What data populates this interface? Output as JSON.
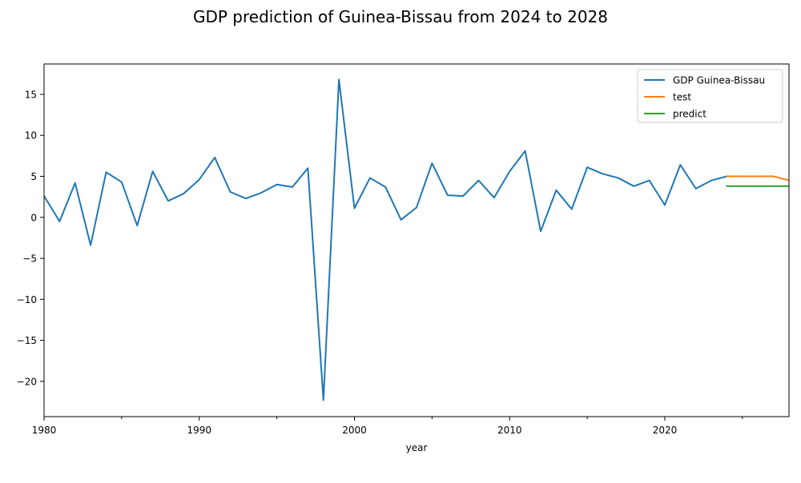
{
  "chart_data": {
    "type": "line",
    "title": "GDP prediction of Guinea-Bissau from 2024 to 2028",
    "xlabel": "year",
    "ylabel": "",
    "xlim": [
      1980,
      2028
    ],
    "ylim": [
      -24.3,
      18.7
    ],
    "x_ticks": [
      1980,
      1990,
      2000,
      2010,
      2020
    ],
    "x_minor_ticks": [
      1985,
      1995,
      2005,
      2015,
      2025
    ],
    "y_ticks": [
      -20,
      -15,
      -10,
      -5,
      0,
      5,
      10,
      15
    ],
    "grid": false,
    "legend_position": "top-right",
    "series": [
      {
        "name": "GDP Guinea-Bissau",
        "color": "#1f77b4",
        "x": [
          1980,
          1981,
          1982,
          1983,
          1984,
          1985,
          1986,
          1987,
          1988,
          1989,
          1990,
          1991,
          1992,
          1993,
          1994,
          1995,
          1996,
          1997,
          1998,
          1999,
          2000,
          2001,
          2002,
          2003,
          2004,
          2005,
          2006,
          2007,
          2008,
          2009,
          2010,
          2011,
          2012,
          2013,
          2014,
          2015,
          2016,
          2017,
          2018,
          2019,
          2020,
          2021,
          2022,
          2023,
          2024
        ],
        "values": [
          2.6,
          -0.5,
          4.2,
          -3.4,
          5.5,
          4.3,
          -1.0,
          5.6,
          2.0,
          2.9,
          4.6,
          7.3,
          3.1,
          2.3,
          3.0,
          4.0,
          3.7,
          6.0,
          -22.3,
          16.8,
          1.1,
          4.8,
          3.7,
          -0.3,
          1.2,
          6.6,
          2.7,
          2.6,
          4.5,
          2.4,
          5.6,
          8.1,
          -1.7,
          3.3,
          1.0,
          6.1,
          5.3,
          4.8,
          3.8,
          4.5,
          1.5,
          6.4,
          3.5,
          4.5,
          5.0
        ]
      },
      {
        "name": "test",
        "color": "#ff7f0e",
        "x": [
          2024,
          2025,
          2026,
          2027,
          2028
        ],
        "values": [
          5.0,
          5.0,
          5.0,
          5.0,
          4.5
        ]
      },
      {
        "name": "predict",
        "color": "#2ca02c",
        "x": [
          2024,
          2025,
          2026,
          2027,
          2028
        ],
        "values": [
          3.8,
          3.8,
          3.8,
          3.8,
          3.8
        ]
      }
    ]
  }
}
